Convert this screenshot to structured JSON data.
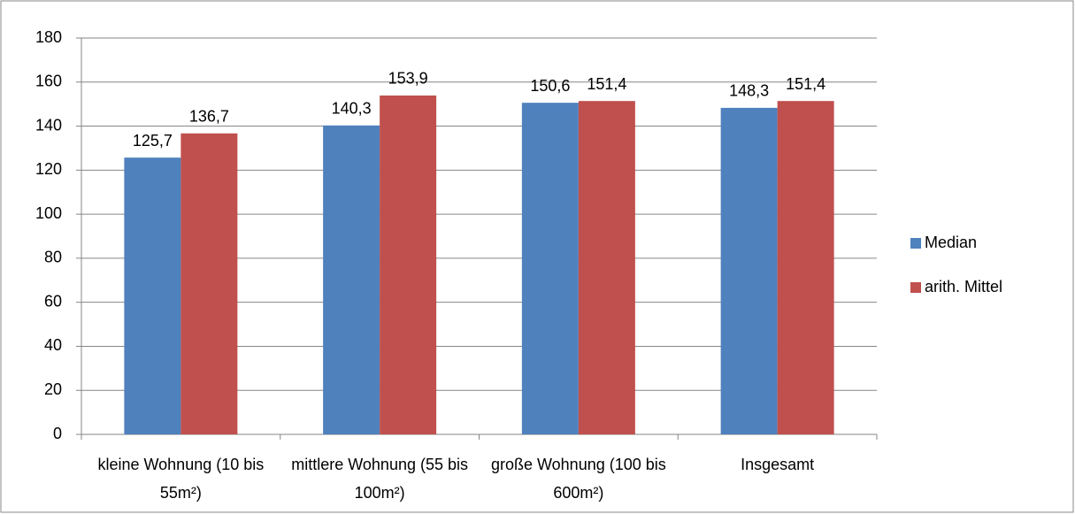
{
  "chart_data": {
    "type": "bar",
    "categories": [
      "kleine Wohnung (10 bis 55m²)",
      "mittlere Wohnung (55 bis 100m²)",
      "große Wohnung (100 bis 600m²)",
      "Insgesamt"
    ],
    "series": [
      {
        "name": "Median",
        "color": "#4f81bd",
        "values": [
          125.7,
          140.3,
          150.6,
          148.3
        ],
        "value_labels": [
          "125,7",
          "140,3",
          "150,6",
          "148,3"
        ]
      },
      {
        "name": "arith. Mittel",
        "color": "#c0504d",
        "values": [
          136.7,
          153.9,
          151.4,
          151.4
        ],
        "value_labels": [
          "136,7",
          "153,9",
          "151,4",
          "151,4"
        ]
      }
    ],
    "ylim": [
      0,
      180
    ],
    "yticks": [
      0,
      20,
      40,
      60,
      80,
      100,
      120,
      140,
      160,
      180
    ],
    "grid": true,
    "legend": "right"
  }
}
